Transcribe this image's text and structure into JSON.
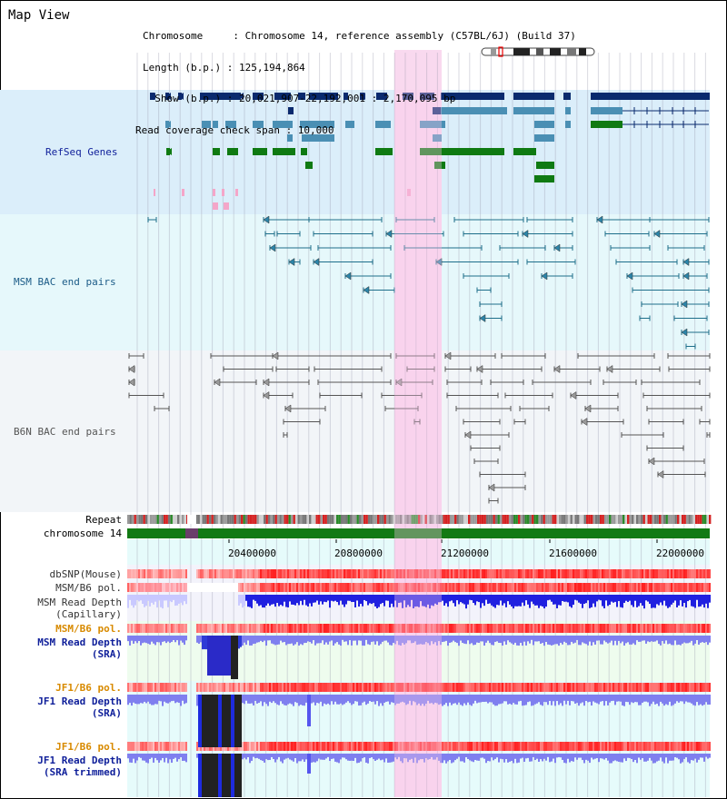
{
  "page": {
    "title": "Map View"
  },
  "info": {
    "chromosome_line": "Chromosome     : Chromosome 14, reference assembly (C57BL/6J) (Build 37)",
    "length_line": "Length (b.p.) : 125,194,864",
    "show_line": "  Show (b.p.) : 20,021,907-22,192,001 : 2,170,095 bp",
    "span_line": "Read coverage check span : 10,000"
  },
  "tracks": {
    "refseq": "RefSeq Genes",
    "msm_bac": "MSM BAC end pairs",
    "b6n_bac": "B6N BAC end pairs",
    "repeat": "Repeat",
    "chromosome": "chromosome 14",
    "dbsnp": "dbSNP(Mouse)",
    "msm_b6_pol_1": "MSM/B6 pol.",
    "msm_read_depth_cap_1": "MSM Read Depth",
    "msm_read_depth_cap_2": "(Capillary)",
    "msm_b6_pol_2": "MSM/B6 pol.",
    "msm_read_depth_sra_1": "MSM Read Depth",
    "msm_read_depth_sra_2": "(SRA)",
    "jf1_b6_pol_1": "JF1/B6 pol.",
    "jf1_read_depth_sra_1": "JF1 Read Depth",
    "jf1_read_depth_sra_2": "(SRA)",
    "jf1_b6_pol_2": "JF1/B6 pol.",
    "jf1_read_depth_trim_1": "JF1 Read Depth",
    "jf1_read_depth_trim_2": "(SRA trimmed)"
  },
  "axis": {
    "ticks": [
      "20400000",
      "20800000",
      "21200000",
      "21600000",
      "22000000"
    ]
  },
  "colors": {
    "refseq_bg": "#dbeefa",
    "msm_bg": "#e6f8fb",
    "b6n_bg": "#f2f5f8",
    "highlight": "#f9d9ef",
    "navy": "#0a2a6e",
    "teal": "#4a8fb4",
    "green": "#0f7a12",
    "pink": "#f4a6c9",
    "orange_label": "#d88a00",
    "blue_label": "#0f1f9a"
  }
}
